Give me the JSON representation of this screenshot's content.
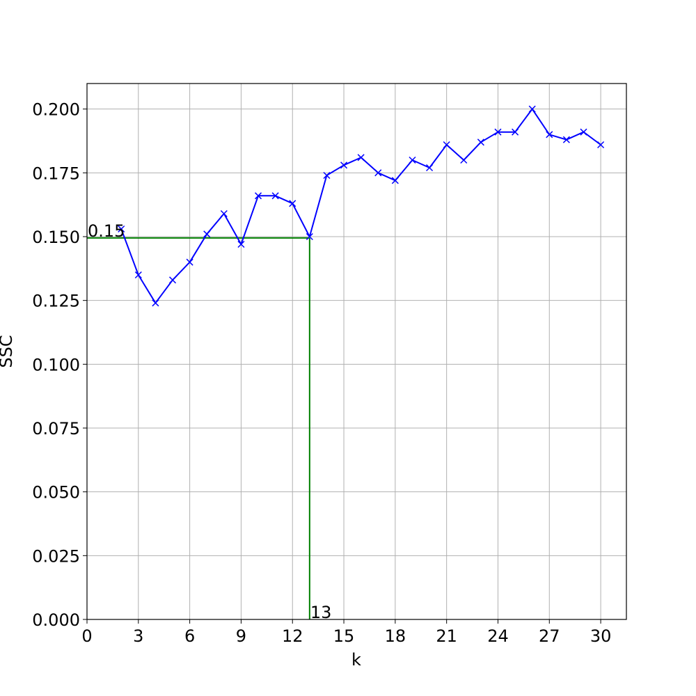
{
  "chart_data": {
    "type": "line",
    "title": "",
    "xlabel": "k",
    "ylabel": "SSC",
    "xlim": [
      0,
      31.5
    ],
    "ylim": [
      0,
      0.21
    ],
    "grid": true,
    "xticks": [
      0,
      3,
      6,
      9,
      12,
      15,
      18,
      21,
      24,
      27,
      30
    ],
    "xtick_labels": [
      "0",
      "3",
      "6",
      "9",
      "12",
      "15",
      "18",
      "21",
      "24",
      "27",
      "30"
    ],
    "yticks": [
      0,
      0.025,
      0.05,
      0.075,
      0.1,
      0.125,
      0.15,
      0.175,
      0.2
    ],
    "ytick_labels": [
      "0.000",
      "0.025",
      "0.050",
      "0.075",
      "0.100",
      "0.125",
      "0.150",
      "0.175",
      "0.200"
    ],
    "series": [
      {
        "color": "#0000ff",
        "marker": "x",
        "x": [
          2,
          3,
          4,
          5,
          6,
          7,
          8,
          9,
          10,
          11,
          12,
          13,
          14,
          15,
          16,
          17,
          18,
          19,
          20,
          21,
          22,
          23,
          24,
          25,
          26,
          27,
          28,
          29,
          30
        ],
        "y": [
          0.153,
          0.135,
          0.124,
          0.133,
          0.14,
          0.151,
          0.159,
          0.147,
          0.166,
          0.166,
          0.163,
          0.15,
          0.174,
          0.178,
          0.181,
          0.175,
          0.172,
          0.18,
          0.177,
          0.186,
          0.18,
          0.187,
          0.191,
          0.191,
          0.2,
          0.19,
          0.188,
          0.191,
          0.186
        ]
      }
    ],
    "reference_lines": {
      "color": "#008000",
      "x": 13,
      "y": 0.1495
    },
    "annotations": [
      {
        "text": "0.15",
        "x": 0,
        "y": 0.1495
      },
      {
        "text": "13",
        "x": 13,
        "y": 0
      }
    ]
  }
}
